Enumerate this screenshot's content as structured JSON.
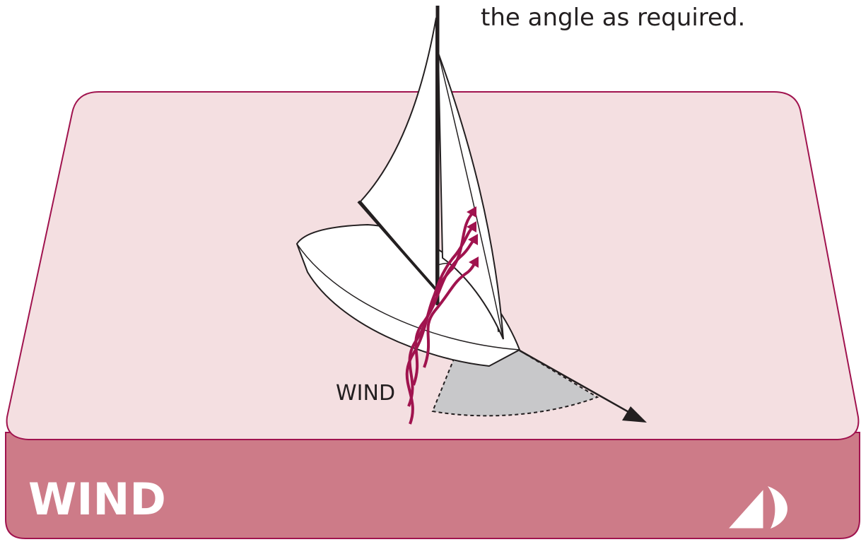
{
  "caption": "the angle as required.",
  "wind_label": "WIND",
  "panel_title": "WIND"
}
